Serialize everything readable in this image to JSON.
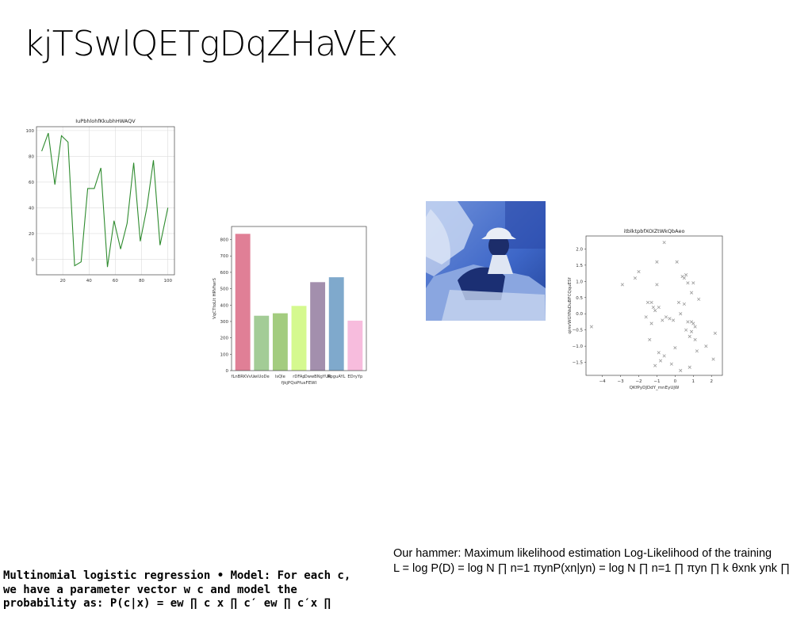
{
  "slide": {
    "title": "kjTSwlQETgDqZHaVEx",
    "text_right_line1": "Our hammer: Maximum likelihood estimation Log-Likelihood of the training",
    "text_right_line2": "L = log P(D) = log N ∏ n=1 πynP(xn|yn) = log N ∏ n=1 ∏ πyn ∏ k θxnk ynk ∏",
    "text_left": "Multinomial logistic regression • Model: For each c, we have a parameter vector w c and model the probability as: P(c|x) = ew ∏ c x ∏ c′ ew ∏ c′x ∏"
  },
  "photo": {
    "icon": "photo-person-blue-tint",
    "colors": {
      "bg": "#3e67c8",
      "light": "#9bb8ea",
      "dark": "#1b2f73",
      "hat": "#e9eef6"
    }
  },
  "chart_data": [
    {
      "type": "line",
      "title": "IuPbhlohfKkubhHWAQV",
      "xlabel": "",
      "ylabel": "",
      "x": [
        4,
        9,
        14,
        19,
        24,
        29,
        34,
        39,
        44,
        49,
        54,
        59,
        64,
        69,
        74,
        79,
        84,
        89,
        94,
        100
      ],
      "y": [
        84,
        98,
        58,
        96,
        91,
        -5,
        -2,
        55,
        55,
        71,
        -6,
        30,
        8,
        28,
        75,
        14,
        40,
        77,
        11,
        40
      ],
      "xticks": [
        20,
        40,
        60,
        80,
        100
      ],
      "yticks": [
        0,
        20,
        40,
        60,
        80,
        100
      ],
      "xlim": [
        0,
        105
      ],
      "ylim": [
        -12,
        103
      ],
      "grid": true,
      "color": "#2e8b2e"
    },
    {
      "type": "bar",
      "title": "",
      "xlabel": "fjkjPQoPfusFEWI",
      "ylabel": "VqCTtoLlt HRVfwrS",
      "categories": [
        "fLnBRKVvU",
        "wiUoDe",
        "lsQle",
        "rDFAp",
        "DwwBNgYUR",
        "RpguAYL",
        "EDryYp"
      ],
      "values": [
        835,
        335,
        350,
        395,
        540,
        570,
        305
      ],
      "colors": [
        "#e07f96",
        "#a3cc96",
        "#a3cc7f",
        "#d5f98f",
        "#a38fad",
        "#7fa9cc",
        "#f7bcdd"
      ],
      "yticks": [
        0,
        100,
        200,
        300,
        400,
        500,
        600,
        700,
        800
      ],
      "ylim": [
        0,
        880
      ],
      "grid": false
    },
    {
      "type": "scatter",
      "title": "itblktpbfXOIZtWkQbAeo",
      "xlabel": "QKfPyDJDdY_mnEyUjW",
      "ylabel": "qimrWGYNsDuBFCQquESf",
      "x": [
        -4.6,
        -2.9,
        -2.2,
        -2.0,
        -1.6,
        -1.5,
        -1.4,
        -1.3,
        -1.2,
        -1.1,
        -1.1,
        -1.0,
        -1.0,
        -0.9,
        -0.8,
        -0.7,
        -0.6,
        -0.5,
        -0.3,
        -0.2,
        -0.1,
        0.0,
        0.1,
        0.2,
        0.3,
        0.4,
        0.5,
        0.5,
        0.6,
        0.7,
        0.8,
        0.8,
        0.9,
        0.9,
        1.0,
        1.1,
        1.2,
        1.3,
        1.7,
        2.1,
        2.2,
        -0.6,
        -0.9,
        0.3,
        0.6,
        1.0,
        -1.3,
        0.7,
        0.9,
        1.1
      ],
      "y": [
        -0.4,
        0.9,
        1.1,
        1.3,
        -0.1,
        0.35,
        -0.8,
        0.35,
        0.2,
        0.1,
        -1.6,
        1.6,
        0.9,
        -1.2,
        -1.45,
        -0.2,
        -1.3,
        -0.1,
        -0.15,
        -1.55,
        -0.2,
        -1.05,
        1.6,
        0.35,
        -1.75,
        1.15,
        1.1,
        0.3,
        1.2,
        0.95,
        -0.7,
        -1.65,
        0.65,
        -0.25,
        0.95,
        -0.4,
        -1.15,
        0.45,
        -1.0,
        -1.4,
        -0.6,
        2.2,
        0.2,
        0.0,
        -0.5,
        -0.3,
        -0.3,
        -0.25,
        -0.55,
        -0.8
      ],
      "xticks": [
        -4,
        -3,
        -2,
        -1,
        0,
        1,
        2
      ],
      "yticks": [
        -1.5,
        -1.0,
        -0.5,
        0.0,
        0.5,
        1.0,
        1.5,
        2.0
      ],
      "xlim": [
        -4.9,
        2.6
      ],
      "ylim": [
        -1.9,
        2.4
      ],
      "grid": false,
      "marker": "x",
      "color": "#9a9a9a"
    }
  ]
}
